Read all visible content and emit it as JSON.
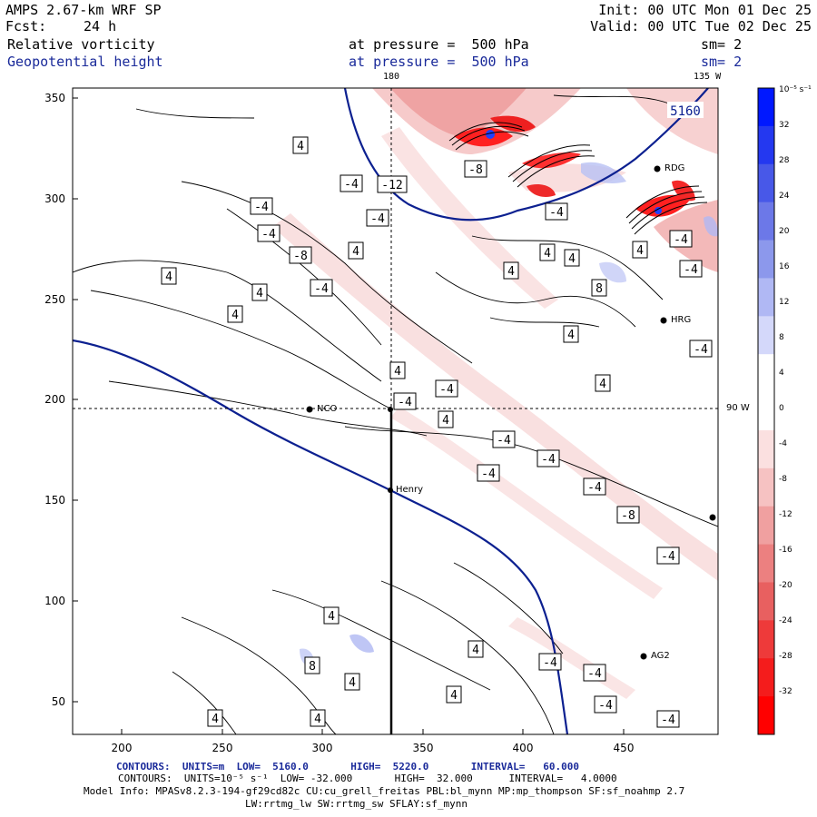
{
  "header": {
    "model": "AMPS 2.67-km WRF SP",
    "fcst_label": "Fcst:",
    "fcst_value": "24 h",
    "init": "Init: 00 UTC Mon 01 Dec 25",
    "valid": "Valid: 00 UTC Tue 02 Dec 25",
    "field1_name": "Relative vorticity",
    "field1_level": "at pressure =  500 hPa",
    "field1_sm": "sm= 2",
    "field2_name": "Geopotential height",
    "field2_level": "at pressure =  500 hPa",
    "field2_sm": "sm= 2"
  },
  "map": {
    "lon_top_mid": "180",
    "lon_top_right": "135 W",
    "lon_right": "90 W",
    "x_ticks": [
      "200",
      "250",
      "300",
      "350",
      "400",
      "450"
    ],
    "y_ticks": [
      "350",
      "300",
      "250",
      "200",
      "150",
      "100",
      "50"
    ],
    "stations": [
      "NCO",
      "Henry",
      "RDG",
      "HRG",
      "AG2"
    ],
    "height_contour_label": "5160",
    "vort_labels": [
      "4",
      "-4",
      "-8",
      "-12",
      "8"
    ]
  },
  "colorbar": {
    "unit": "10⁻⁵ s⁻¹",
    "ticks": [
      "32",
      "28",
      "24",
      "20",
      "16",
      "12",
      "8",
      "4",
      "0",
      "-4",
      "-8",
      "-12",
      "-16",
      "-20",
      "-24",
      "-28",
      "-32"
    ],
    "colors": [
      "#0018ff",
      "#2438f0",
      "#4858e8",
      "#6c78e8",
      "#8c98ec",
      "#b0b8f4",
      "#d4d8fa",
      "#ffffff",
      "#ffffff",
      "#fbe0e0",
      "#f6c2c2",
      "#f0a0a0",
      "#ec8080",
      "#e86060",
      "#ee3a3a",
      "#f41c1c",
      "#ff0000"
    ]
  },
  "footer": {
    "line1": "CONTOURS:  UNITS=m  LOW=  5160.0       HIGH=  5220.0       INTERVAL=   60.000",
    "line2": "CONTOURS:  UNITS=10⁻⁵ s⁻¹  LOW= -32.000       HIGH=  32.000      INTERVAL=   4.0000",
    "line3": "Model Info: MPASv8.2.3-194-gf29cd82c CU:cu_grell_freitas PBL:bl_mynn MP:mp_thompson SF:sf_noahmp 2.7",
    "line4": "LW:rrtmg_lw SW:rrtmg_sw SFLAY:sf_mynn"
  }
}
